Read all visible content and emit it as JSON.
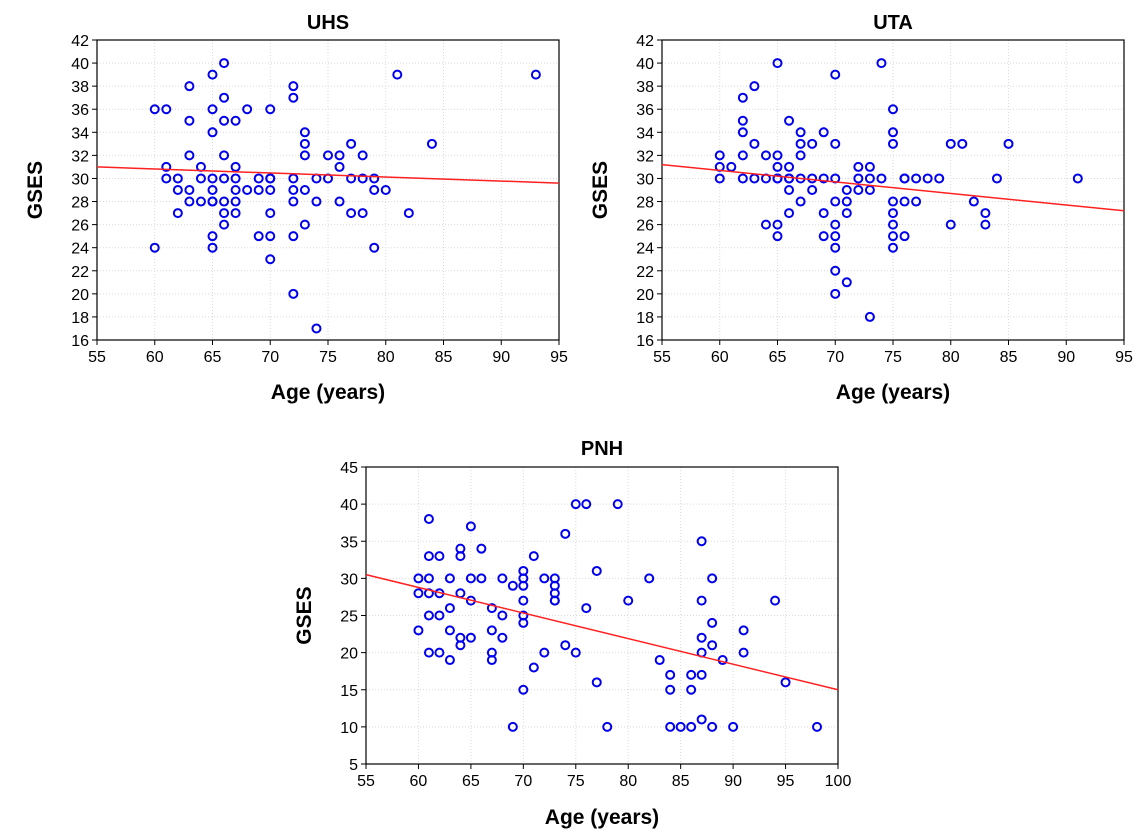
{
  "chart_data": [
    {
      "type": "scatter",
      "title": "UHS",
      "xlabel": "Age (years)",
      "ylabel": "GSES",
      "xlim": [
        55,
        95
      ],
      "ylim": [
        16,
        42
      ],
      "xticks": [
        55,
        60,
        65,
        70,
        75,
        80,
        85,
        90,
        95
      ],
      "yticks": [
        16,
        18,
        20,
        22,
        24,
        26,
        28,
        30,
        32,
        34,
        36,
        38,
        40,
        42
      ],
      "grid": true,
      "fit_line": {
        "x": [
          55,
          95
        ],
        "y": [
          31.0,
          29.6
        ]
      },
      "points": {
        "x": [
          60,
          60,
          61,
          61,
          61,
          62,
          62,
          62,
          63,
          63,
          63,
          63,
          63,
          64,
          64,
          64,
          65,
          65,
          65,
          65,
          65,
          65,
          65,
          65,
          65,
          66,
          66,
          66,
          66,
          66,
          66,
          66,
          66,
          67,
          67,
          67,
          67,
          67,
          67,
          68,
          68,
          69,
          69,
          69,
          70,
          70,
          70,
          70,
          70,
          70,
          70,
          72,
          72,
          72,
          72,
          72,
          72,
          72,
          73,
          73,
          73,
          73,
          73,
          74,
          74,
          74,
          75,
          75,
          76,
          76,
          76,
          77,
          77,
          77,
          78,
          78,
          78,
          79,
          79,
          79,
          80,
          81,
          82,
          84,
          93
        ],
        "y": [
          36,
          24,
          36,
          31,
          30,
          30,
          29,
          27,
          38,
          35,
          32,
          29,
          28,
          31,
          30,
          28,
          39,
          36,
          34,
          30,
          29,
          28,
          28,
          25,
          24,
          40,
          37,
          35,
          32,
          30,
          28,
          27,
          26,
          35,
          31,
          30,
          29,
          28,
          27,
          36,
          29,
          30,
          29,
          25,
          36,
          30,
          29,
          27,
          25,
          23,
          30,
          38,
          37,
          30,
          29,
          28,
          25,
          20,
          34,
          33,
          32,
          29,
          26,
          30,
          28,
          17,
          32,
          30,
          32,
          31,
          28,
          33,
          30,
          27,
          32,
          30,
          27,
          30,
          29,
          24,
          29,
          39,
          27,
          33,
          39
        ]
      }
    },
    {
      "type": "scatter",
      "title": "UTA",
      "xlabel": "Age (years)",
      "ylabel": "GSES",
      "xlim": [
        55,
        95
      ],
      "ylim": [
        16,
        42
      ],
      "xticks": [
        55,
        60,
        65,
        70,
        75,
        80,
        85,
        90,
        95
      ],
      "yticks": [
        16,
        18,
        20,
        22,
        24,
        26,
        28,
        30,
        32,
        34,
        36,
        38,
        40,
        42
      ],
      "grid": true,
      "fit_line": {
        "x": [
          55,
          95
        ],
        "y": [
          31.2,
          27.2
        ]
      },
      "points": {
        "x": [
          60,
          60,
          60,
          61,
          62,
          62,
          62,
          62,
          62,
          63,
          63,
          63,
          64,
          64,
          64,
          65,
          65,
          65,
          65,
          65,
          65,
          65,
          66,
          66,
          66,
          66,
          66,
          66,
          67,
          67,
          67,
          67,
          67,
          68,
          68,
          68,
          69,
          69,
          69,
          69,
          70,
          70,
          70,
          70,
          70,
          70,
          70,
          70,
          70,
          71,
          71,
          71,
          71,
          72,
          72,
          72,
          73,
          73,
          73,
          73,
          74,
          74,
          75,
          75,
          75,
          75,
          75,
          75,
          75,
          75,
          76,
          76,
          76,
          76,
          77,
          77,
          78,
          79,
          80,
          80,
          81,
          82,
          83,
          83,
          84,
          85,
          91
        ],
        "y": [
          32,
          31,
          30,
          31,
          37,
          35,
          34,
          32,
          30,
          38,
          33,
          30,
          32,
          30,
          26,
          40,
          32,
          31,
          30,
          30,
          26,
          25,
          35,
          31,
          30,
          30,
          29,
          27,
          34,
          33,
          32,
          30,
          28,
          33,
          30,
          29,
          34,
          30,
          27,
          25,
          39,
          33,
          30,
          28,
          26,
          25,
          24,
          22,
          20,
          29,
          28,
          27,
          21,
          31,
          30,
          29,
          31,
          30,
          29,
          18,
          40,
          30,
          36,
          34,
          33,
          28,
          27,
          26,
          25,
          24,
          30,
          28,
          25,
          30,
          28,
          30,
          30,
          30,
          33,
          26,
          33,
          28,
          27,
          26,
          30,
          33,
          30
        ]
      }
    },
    {
      "type": "scatter",
      "title": "PNH",
      "xlabel": "Age (years)",
      "ylabel": "GSES",
      "xlim": [
        55,
        100
      ],
      "ylim": [
        5,
        45
      ],
      "xticks": [
        55,
        60,
        65,
        70,
        75,
        80,
        85,
        90,
        95,
        100
      ],
      "yticks": [
        5,
        10,
        15,
        20,
        25,
        30,
        35,
        40,
        45
      ],
      "grid": true,
      "fit_line": {
        "x": [
          55,
          100
        ],
        "y": [
          30.5,
          15.0
        ]
      },
      "points": {
        "x": [
          60,
          60,
          60,
          61,
          61,
          61,
          61,
          61,
          61,
          62,
          62,
          62,
          62,
          63,
          63,
          63,
          63,
          64,
          64,
          64,
          64,
          64,
          65,
          65,
          65,
          65,
          66,
          66,
          67,
          67,
          67,
          67,
          68,
          68,
          68,
          69,
          69,
          70,
          70,
          70,
          70,
          70,
          70,
          70,
          71,
          71,
          72,
          72,
          73,
          73,
          73,
          73,
          73,
          74,
          74,
          75,
          75,
          76,
          76,
          77,
          77,
          78,
          79,
          80,
          82,
          83,
          84,
          84,
          84,
          85,
          86,
          86,
          86,
          87,
          87,
          87,
          87,
          87,
          87,
          88,
          88,
          88,
          88,
          89,
          90,
          91,
          91,
          94,
          95,
          98
        ],
        "y": [
          30,
          28,
          23,
          38,
          33,
          30,
          28,
          25,
          20,
          33,
          28,
          25,
          20,
          30,
          26,
          23,
          19,
          34,
          33,
          28,
          22,
          21,
          37,
          30,
          27,
          22,
          34,
          30,
          26,
          23,
          20,
          19,
          30,
          25,
          22,
          29,
          10,
          31,
          30,
          29,
          27,
          25,
          24,
          15,
          33,
          18,
          30,
          20,
          30,
          29,
          28,
          27,
          27,
          36,
          21,
          40,
          20,
          40,
          26,
          31,
          16,
          10,
          40,
          27,
          30,
          19,
          17,
          15,
          10,
          10,
          17,
          15,
          10,
          35,
          27,
          22,
          20,
          17,
          11,
          30,
          24,
          21,
          10,
          19,
          10,
          23,
          20,
          27,
          16,
          10
        ]
      }
    }
  ]
}
